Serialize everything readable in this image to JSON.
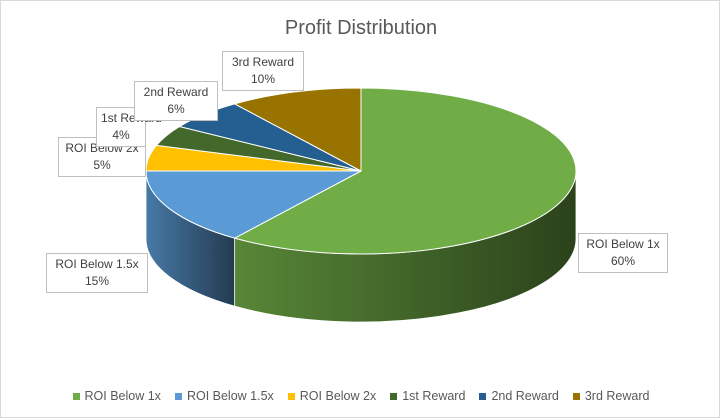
{
  "chart_data": {
    "type": "pie",
    "title": "Profit Distribution",
    "style": "3d",
    "legend_position": "bottom",
    "slices": [
      {
        "name": "ROI Below 1x",
        "value": 60,
        "label": "60%",
        "color": "#70ad47"
      },
      {
        "name": "ROI Below 1.5x",
        "value": 15,
        "label": "15%",
        "color": "#5b9bd5"
      },
      {
        "name": "ROI Below 2x",
        "value": 5,
        "label": "5%",
        "color": "#ffc000"
      },
      {
        "name": "1st Reward",
        "value": 4,
        "label": "4%",
        "color": "#43682b"
      },
      {
        "name": "2nd Reward",
        "value": 6,
        "label": "6%",
        "color": "#255e91"
      },
      {
        "name": "3rd Reward",
        "value": 10,
        "label": "10%",
        "color": "#997300"
      }
    ]
  }
}
